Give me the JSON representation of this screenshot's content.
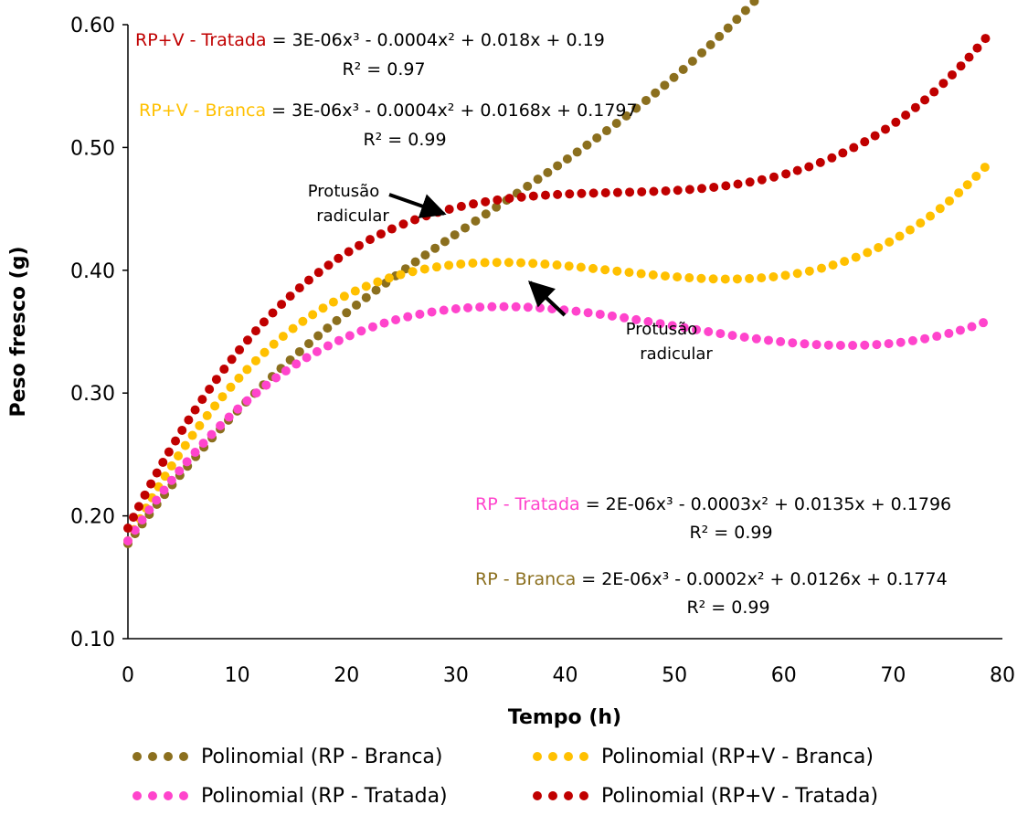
{
  "chart_data": {
    "type": "scatter",
    "xlabel": "Tempo (h)",
    "ylabel": "Peso fresco (g)",
    "xlim": [
      0,
      80
    ],
    "ylim": [
      0.1,
      0.6
    ],
    "x_ticks": [
      "0",
      "10",
      "20",
      "30",
      "40",
      "50",
      "60",
      "70",
      "80"
    ],
    "y_ticks": [
      "0.10",
      "0.20",
      "0.30",
      "0.40",
      "0.50",
      "0.60"
    ],
    "grid": false,
    "legend_position": "bottom",
    "series": [
      {
        "name": "Polinomial (RP - Branca)",
        "color": "#8B6F1E",
        "coef": [
          2e-06,
          -0.0002,
          0.0126,
          0.1774
        ]
      },
      {
        "name": "Polinomial (RP+V - Branca)",
        "color": "#FFC000",
        "coef": [
          3e-06,
          -0.0004,
          0.0168,
          0.1797
        ]
      },
      {
        "name": "Polinomial (RP - Tratada)",
        "color": "#FF44CC",
        "coef": [
          2e-06,
          -0.0003,
          0.0135,
          0.1796
        ]
      },
      {
        "name": "Polinomial (RP+V - Tratada)",
        "color": "#C00000",
        "coef": [
          3e-06,
          -0.0004,
          0.018,
          0.19
        ]
      }
    ],
    "equations": [
      {
        "series_label": "RP+V - Tratada",
        "color": "#C00000",
        "equation": " = 3E-06x³ - 0.0004x² + 0.018x + 0.19",
        "r2": "R² = 0.97"
      },
      {
        "series_label": "RP+V - Branca",
        "color": "#FFC000",
        "equation": " = 3E-06x³ - 0.0004x² + 0.0168x + 0.1797",
        "r2": "R² = 0.99"
      },
      {
        "series_label": "RP - Tratada",
        "color": "#FF44CC",
        "equation": " = 2E-06x³ - 0.0003x² + 0.0135x + 0.1796",
        "r2": "R² = 0.99"
      },
      {
        "series_label": "RP - Branca",
        "color": "#8B6F1E",
        "equation": " = 2E-06x³ - 0.0002x² + 0.0126x + 0.1774",
        "r2": "R² = 0.99"
      }
    ],
    "annotations": [
      {
        "line1": "Protusão",
        "line2": "radicular",
        "x": 29.5,
        "y": 0.437
      },
      {
        "line1": "Protusão",
        "line2": "radicular",
        "x": 36.0,
        "y": 0.397
      }
    ]
  }
}
